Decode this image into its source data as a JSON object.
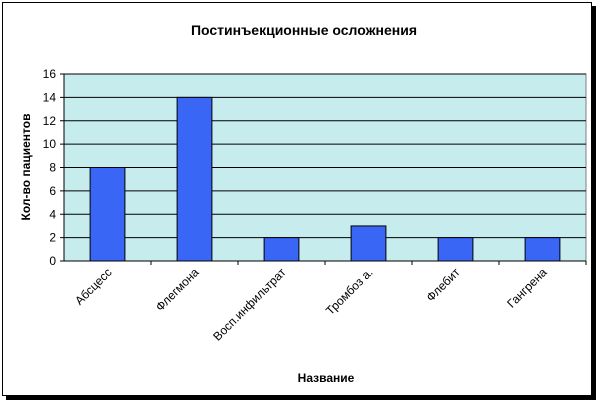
{
  "chart_data": {
    "type": "bar",
    "title": "Постинъекционные осложнения",
    "xlabel": "Название",
    "ylabel": "Кол-во пациентов",
    "categories": [
      "Абсцесс",
      "Флегмона",
      "Восп.инфильтрат",
      "Тромбоз а.",
      "Флебит",
      "Гангрена"
    ],
    "values": [
      8,
      14,
      2,
      3,
      2,
      2
    ],
    "ylim": [
      0,
      16
    ],
    "yticks": [
      0,
      2,
      4,
      6,
      8,
      10,
      12,
      14,
      16
    ],
    "grid": true,
    "legend": "none",
    "colors": {
      "bar": "#3a66f5",
      "plot_background": "#c6ecee",
      "gridline": "#000000"
    }
  }
}
